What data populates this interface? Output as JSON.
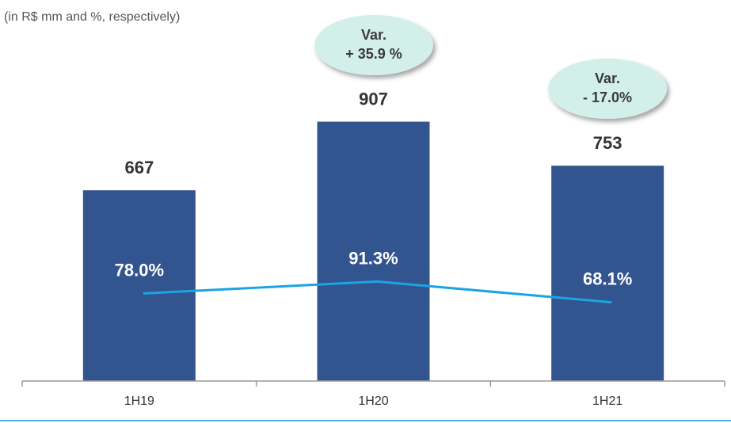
{
  "chart_data": {
    "type": "bar_line",
    "subtitle": "(in R$ mm and %, respectively)",
    "categories": [
      "1H19",
      "1H20",
      "1H21"
    ],
    "series": [
      {
        "name": "R$ mm",
        "type": "bar",
        "color": "#33558f",
        "values": [
          667,
          907,
          753
        ]
      },
      {
        "name": "%",
        "type": "line",
        "axis": "y2",
        "color": "#1ba4e3",
        "values": [
          78.0,
          91.3,
          68.1
        ],
        "value_labels": [
          "78.0%",
          "91.3%",
          "68.1%"
        ]
      }
    ],
    "ylim": [
      0,
      1000
    ],
    "y2lim": [
      -20,
      300
    ],
    "annotations": [
      [
        "Var.",
        "+ 35.9 %"
      ],
      [
        "Var.",
        "- 17.0%"
      ]
    ]
  }
}
